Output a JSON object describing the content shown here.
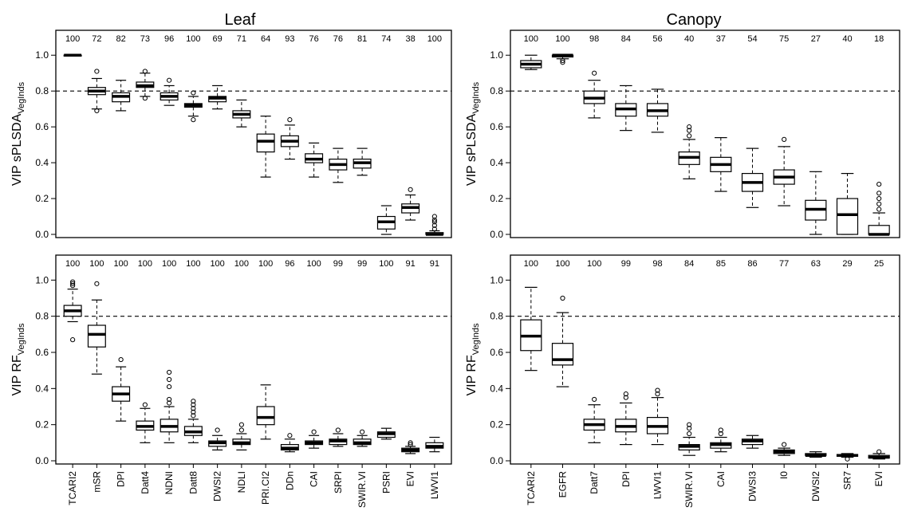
{
  "columns": {
    "left": "Leaf",
    "right": "Canopy"
  },
  "chart_data": [
    {
      "type": "boxplot",
      "title": "Leaf",
      "ylabel": "VIP sPLSDA",
      "ylabel_sub": "VegInds",
      "ylim": [
        0,
        1.05
      ],
      "yticks": [
        "0.0",
        "0.2",
        "0.4",
        "0.6",
        "0.8",
        "1.0"
      ],
      "threshold": 0.8,
      "counts": [
        "100",
        "72",
        "82",
        "73",
        "96",
        "100",
        "69",
        "71",
        "64",
        "93",
        "76",
        "76",
        "81",
        "74",
        "38",
        "100"
      ],
      "boxes": [
        {
          "min": 1.0,
          "q1": 1.0,
          "median": 1.0,
          "q3": 1.0,
          "max": 1.0,
          "outliers": []
        },
        {
          "min": 0.7,
          "q1": 0.78,
          "median": 0.8,
          "q3": 0.82,
          "max": 0.87,
          "outliers": [
            0.69,
            0.91
          ]
        },
        {
          "min": 0.69,
          "q1": 0.74,
          "median": 0.77,
          "q3": 0.79,
          "max": 0.86,
          "outliers": []
        },
        {
          "min": 0.77,
          "q1": 0.82,
          "median": 0.83,
          "q3": 0.85,
          "max": 0.9,
          "outliers": [
            0.76,
            0.91
          ]
        },
        {
          "min": 0.72,
          "q1": 0.75,
          "median": 0.77,
          "q3": 0.79,
          "max": 0.83,
          "outliers": [
            0.86
          ]
        },
        {
          "min": 0.66,
          "q1": 0.71,
          "median": 0.72,
          "q3": 0.73,
          "max": 0.77,
          "outliers": [
            0.64,
            0.79
          ]
        },
        {
          "min": 0.7,
          "q1": 0.74,
          "median": 0.76,
          "q3": 0.77,
          "max": 0.83,
          "outliers": []
        },
        {
          "min": 0.6,
          "q1": 0.65,
          "median": 0.67,
          "q3": 0.69,
          "max": 0.75,
          "outliers": []
        },
        {
          "min": 0.32,
          "q1": 0.46,
          "median": 0.52,
          "q3": 0.56,
          "max": 0.66,
          "outliers": []
        },
        {
          "min": 0.42,
          "q1": 0.49,
          "median": 0.52,
          "q3": 0.55,
          "max": 0.61,
          "outliers": [
            0.64
          ]
        },
        {
          "min": 0.32,
          "q1": 0.4,
          "median": 0.42,
          "q3": 0.45,
          "max": 0.51,
          "outliers": []
        },
        {
          "min": 0.29,
          "q1": 0.36,
          "median": 0.39,
          "q3": 0.42,
          "max": 0.48,
          "outliers": []
        },
        {
          "min": 0.33,
          "q1": 0.37,
          "median": 0.4,
          "q3": 0.42,
          "max": 0.48,
          "outliers": []
        },
        {
          "min": 0.0,
          "q1": 0.03,
          "median": 0.07,
          "q3": 0.1,
          "max": 0.16,
          "outliers": []
        },
        {
          "min": 0.08,
          "q1": 0.12,
          "median": 0.15,
          "q3": 0.17,
          "max": 0.22,
          "outliers": [
            0.25
          ]
        },
        {
          "min": 0.0,
          "q1": 0.0,
          "median": 0.0,
          "q3": 0.01,
          "max": 0.02,
          "outliers": [
            0.03,
            0.05,
            0.07,
            0.08,
            0.1
          ]
        }
      ]
    },
    {
      "type": "boxplot",
      "title": "Canopy",
      "ylabel": "VIP sPLSDA",
      "ylabel_sub": "VegInds",
      "ylim": [
        0,
        1.05
      ],
      "yticks": [
        "0.0",
        "0.2",
        "0.4",
        "0.6",
        "0.8",
        "1.0"
      ],
      "threshold": 0.8,
      "counts": [
        "100",
        "100",
        "98",
        "84",
        "56",
        "40",
        "37",
        "54",
        "75",
        "27",
        "40",
        "18"
      ],
      "boxes": [
        {
          "min": 0.92,
          "q1": 0.93,
          "median": 0.95,
          "q3": 0.97,
          "max": 1.0,
          "outliers": []
        },
        {
          "min": 0.98,
          "q1": 0.99,
          "median": 1.0,
          "q3": 1.0,
          "max": 1.0,
          "outliers": [
            0.97,
            0.96
          ]
        },
        {
          "min": 0.65,
          "q1": 0.73,
          "median": 0.76,
          "q3": 0.8,
          "max": 0.86,
          "outliers": [
            0.9
          ]
        },
        {
          "min": 0.58,
          "q1": 0.66,
          "median": 0.7,
          "q3": 0.73,
          "max": 0.83,
          "outliers": []
        },
        {
          "min": 0.57,
          "q1": 0.66,
          "median": 0.69,
          "q3": 0.73,
          "max": 0.81,
          "outliers": []
        },
        {
          "min": 0.31,
          "q1": 0.39,
          "median": 0.43,
          "q3": 0.46,
          "max": 0.53,
          "outliers": [
            0.55,
            0.58,
            0.6
          ]
        },
        {
          "min": 0.24,
          "q1": 0.35,
          "median": 0.39,
          "q3": 0.43,
          "max": 0.54,
          "outliers": []
        },
        {
          "min": 0.15,
          "q1": 0.24,
          "median": 0.29,
          "q3": 0.34,
          "max": 0.48,
          "outliers": []
        },
        {
          "min": 0.16,
          "q1": 0.28,
          "median": 0.32,
          "q3": 0.36,
          "max": 0.49,
          "outliers": [
            0.53
          ]
        },
        {
          "min": 0.0,
          "q1": 0.08,
          "median": 0.14,
          "q3": 0.19,
          "max": 0.35,
          "outliers": []
        },
        {
          "min": 0.0,
          "q1": 0.0,
          "median": 0.11,
          "q3": 0.2,
          "max": 0.34,
          "outliers": []
        },
        {
          "min": 0.0,
          "q1": 0.0,
          "median": 0.0,
          "q3": 0.05,
          "max": 0.12,
          "outliers": [
            0.14,
            0.17,
            0.2,
            0.23,
            0.28
          ]
        }
      ]
    },
    {
      "type": "boxplot",
      "title": "",
      "ylabel": "VIP RF",
      "ylabel_sub": "VegInds",
      "ylim": [
        0,
        1.05
      ],
      "yticks": [
        "0.0",
        "0.2",
        "0.4",
        "0.6",
        "0.8",
        "1.0"
      ],
      "threshold": 0.8,
      "counts": [
        "100",
        "100",
        "100",
        "100",
        "100",
        "100",
        "100",
        "100",
        "100",
        "96",
        "100",
        "99",
        "99",
        "100",
        "91",
        "91"
      ],
      "categories": [
        "TCARI2",
        "mSR",
        "DPI",
        "Datt4",
        "NDNI",
        "Datt8",
        "DWSI2",
        "NDLI",
        "PRI.CI2",
        "DDn",
        "CAI",
        "SRPI",
        "SWIR.VI",
        "PSRI",
        "EVI",
        "LWVI1"
      ],
      "boxes": [
        {
          "min": 0.77,
          "q1": 0.8,
          "median": 0.83,
          "q3": 0.86,
          "max": 0.95,
          "outliers": [
            0.67,
            0.97,
            0.98,
            0.99
          ]
        },
        {
          "min": 0.48,
          "q1": 0.63,
          "median": 0.7,
          "q3": 0.75,
          "max": 0.89,
          "outliers": [
            0.98
          ]
        },
        {
          "min": 0.22,
          "q1": 0.33,
          "median": 0.37,
          "q3": 0.41,
          "max": 0.52,
          "outliers": [
            0.56
          ]
        },
        {
          "min": 0.1,
          "q1": 0.17,
          "median": 0.19,
          "q3": 0.22,
          "max": 0.29,
          "outliers": [
            0.31
          ]
        },
        {
          "min": 0.1,
          "q1": 0.16,
          "median": 0.19,
          "q3": 0.23,
          "max": 0.3,
          "outliers": [
            0.32,
            0.34,
            0.41,
            0.45,
            0.49
          ]
        },
        {
          "min": 0.1,
          "q1": 0.14,
          "median": 0.16,
          "q3": 0.19,
          "max": 0.23,
          "outliers": [
            0.25,
            0.27,
            0.29,
            0.31,
            0.33
          ]
        },
        {
          "min": 0.06,
          "q1": 0.08,
          "median": 0.1,
          "q3": 0.11,
          "max": 0.14,
          "outliers": [
            0.17
          ]
        },
        {
          "min": 0.06,
          "q1": 0.09,
          "median": 0.1,
          "q3": 0.12,
          "max": 0.15,
          "outliers": [
            0.17,
            0.2
          ]
        },
        {
          "min": 0.12,
          "q1": 0.2,
          "median": 0.24,
          "q3": 0.3,
          "max": 0.42,
          "outliers": []
        },
        {
          "min": 0.05,
          "q1": 0.06,
          "median": 0.07,
          "q3": 0.09,
          "max": 0.12,
          "outliers": [
            0.14
          ]
        },
        {
          "min": 0.07,
          "q1": 0.09,
          "median": 0.1,
          "q3": 0.11,
          "max": 0.14,
          "outliers": [
            0.16
          ]
        },
        {
          "min": 0.08,
          "q1": 0.09,
          "median": 0.11,
          "q3": 0.12,
          "max": 0.15,
          "outliers": [
            0.17
          ]
        },
        {
          "min": 0.08,
          "q1": 0.09,
          "median": 0.1,
          "q3": 0.12,
          "max": 0.14,
          "outliers": [
            0.16
          ]
        },
        {
          "min": 0.12,
          "q1": 0.13,
          "median": 0.15,
          "q3": 0.16,
          "max": 0.18,
          "outliers": []
        },
        {
          "min": 0.04,
          "q1": 0.05,
          "median": 0.06,
          "q3": 0.07,
          "max": 0.08,
          "outliers": [
            0.09,
            0.1
          ]
        },
        {
          "min": 0.05,
          "q1": 0.07,
          "median": 0.08,
          "q3": 0.1,
          "max": 0.13,
          "outliers": []
        }
      ]
    },
    {
      "type": "boxplot",
      "title": "",
      "ylabel": "VIP RF",
      "ylabel_sub": "VegInds",
      "ylim": [
        0,
        1.05
      ],
      "yticks": [
        "0.0",
        "0.2",
        "0.4",
        "0.6",
        "0.8",
        "1.0"
      ],
      "threshold": 0.8,
      "counts": [
        "100",
        "100",
        "100",
        "99",
        "98",
        "84",
        "85",
        "86",
        "77",
        "63",
        "29",
        "25"
      ],
      "categories": [
        "TCARI2",
        "EGFR",
        "Datt7",
        "DPI",
        "LWVI1",
        "SWIR.VI",
        "CAI",
        "DWSI3",
        "I0",
        "DWSI2",
        "SR7",
        "EVI"
      ],
      "boxes": [
        {
          "min": 0.5,
          "q1": 0.61,
          "median": 0.69,
          "q3": 0.78,
          "max": 0.96,
          "outliers": []
        },
        {
          "min": 0.41,
          "q1": 0.53,
          "median": 0.56,
          "q3": 0.65,
          "max": 0.82,
          "outliers": [
            0.9
          ]
        },
        {
          "min": 0.1,
          "q1": 0.17,
          "median": 0.2,
          "q3": 0.23,
          "max": 0.31,
          "outliers": [
            0.34
          ]
        },
        {
          "min": 0.09,
          "q1": 0.16,
          "median": 0.19,
          "q3": 0.23,
          "max": 0.32,
          "outliers": [
            0.35,
            0.37
          ]
        },
        {
          "min": 0.09,
          "q1": 0.15,
          "median": 0.19,
          "q3": 0.24,
          "max": 0.35,
          "outliers": [
            0.37,
            0.39
          ]
        },
        {
          "min": 0.03,
          "q1": 0.06,
          "median": 0.08,
          "q3": 0.09,
          "max": 0.13,
          "outliers": [
            0.15,
            0.18,
            0.2
          ]
        },
        {
          "min": 0.05,
          "q1": 0.07,
          "median": 0.09,
          "q3": 0.1,
          "max": 0.13,
          "outliers": [
            0.15,
            0.17
          ]
        },
        {
          "min": 0.07,
          "q1": 0.09,
          "median": 0.11,
          "q3": 0.12,
          "max": 0.14,
          "outliers": []
        },
        {
          "min": 0.03,
          "q1": 0.04,
          "median": 0.05,
          "q3": 0.06,
          "max": 0.07,
          "outliers": [
            0.09
          ]
        },
        {
          "min": 0.02,
          "q1": 0.03,
          "median": 0.03,
          "q3": 0.04,
          "max": 0.05,
          "outliers": []
        },
        {
          "min": 0.02,
          "q1": 0.025,
          "median": 0.03,
          "q3": 0.035,
          "max": 0.04,
          "outliers": [
            0.01
          ]
        },
        {
          "min": 0.01,
          "q1": 0.015,
          "median": 0.02,
          "q3": 0.03,
          "max": 0.04,
          "outliers": [
            0.05
          ]
        }
      ]
    }
  ]
}
